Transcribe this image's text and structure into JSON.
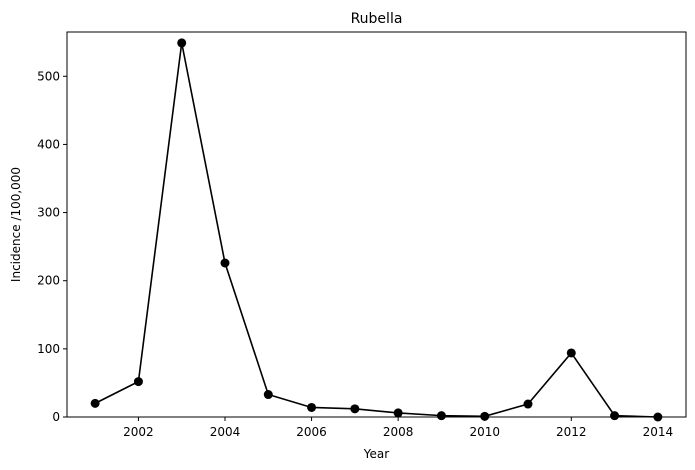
{
  "chart_data": {
    "type": "line",
    "title": "Rubella",
    "xlabel": "Year",
    "ylabel": "Incidence /100,000",
    "xlim": [
      2000.35,
      2014.65
    ],
    "ylim": [
      0,
      565
    ],
    "xticks": [
      2002,
      2004,
      2006,
      2008,
      2010,
      2012,
      2014
    ],
    "yticks": [
      0,
      100,
      200,
      300,
      400,
      500
    ],
    "grid": false,
    "series": [
      {
        "color": "#000000",
        "marker": "circle",
        "x": [
          2001,
          2002,
          2003,
          2004,
          2005,
          2006,
          2007,
          2008,
          2009,
          2010,
          2011,
          2012,
          2013,
          2014
        ],
        "y": [
          20,
          52,
          549,
          226,
          33,
          14,
          12,
          6,
          2,
          1,
          19,
          94,
          2,
          0
        ]
      }
    ]
  }
}
